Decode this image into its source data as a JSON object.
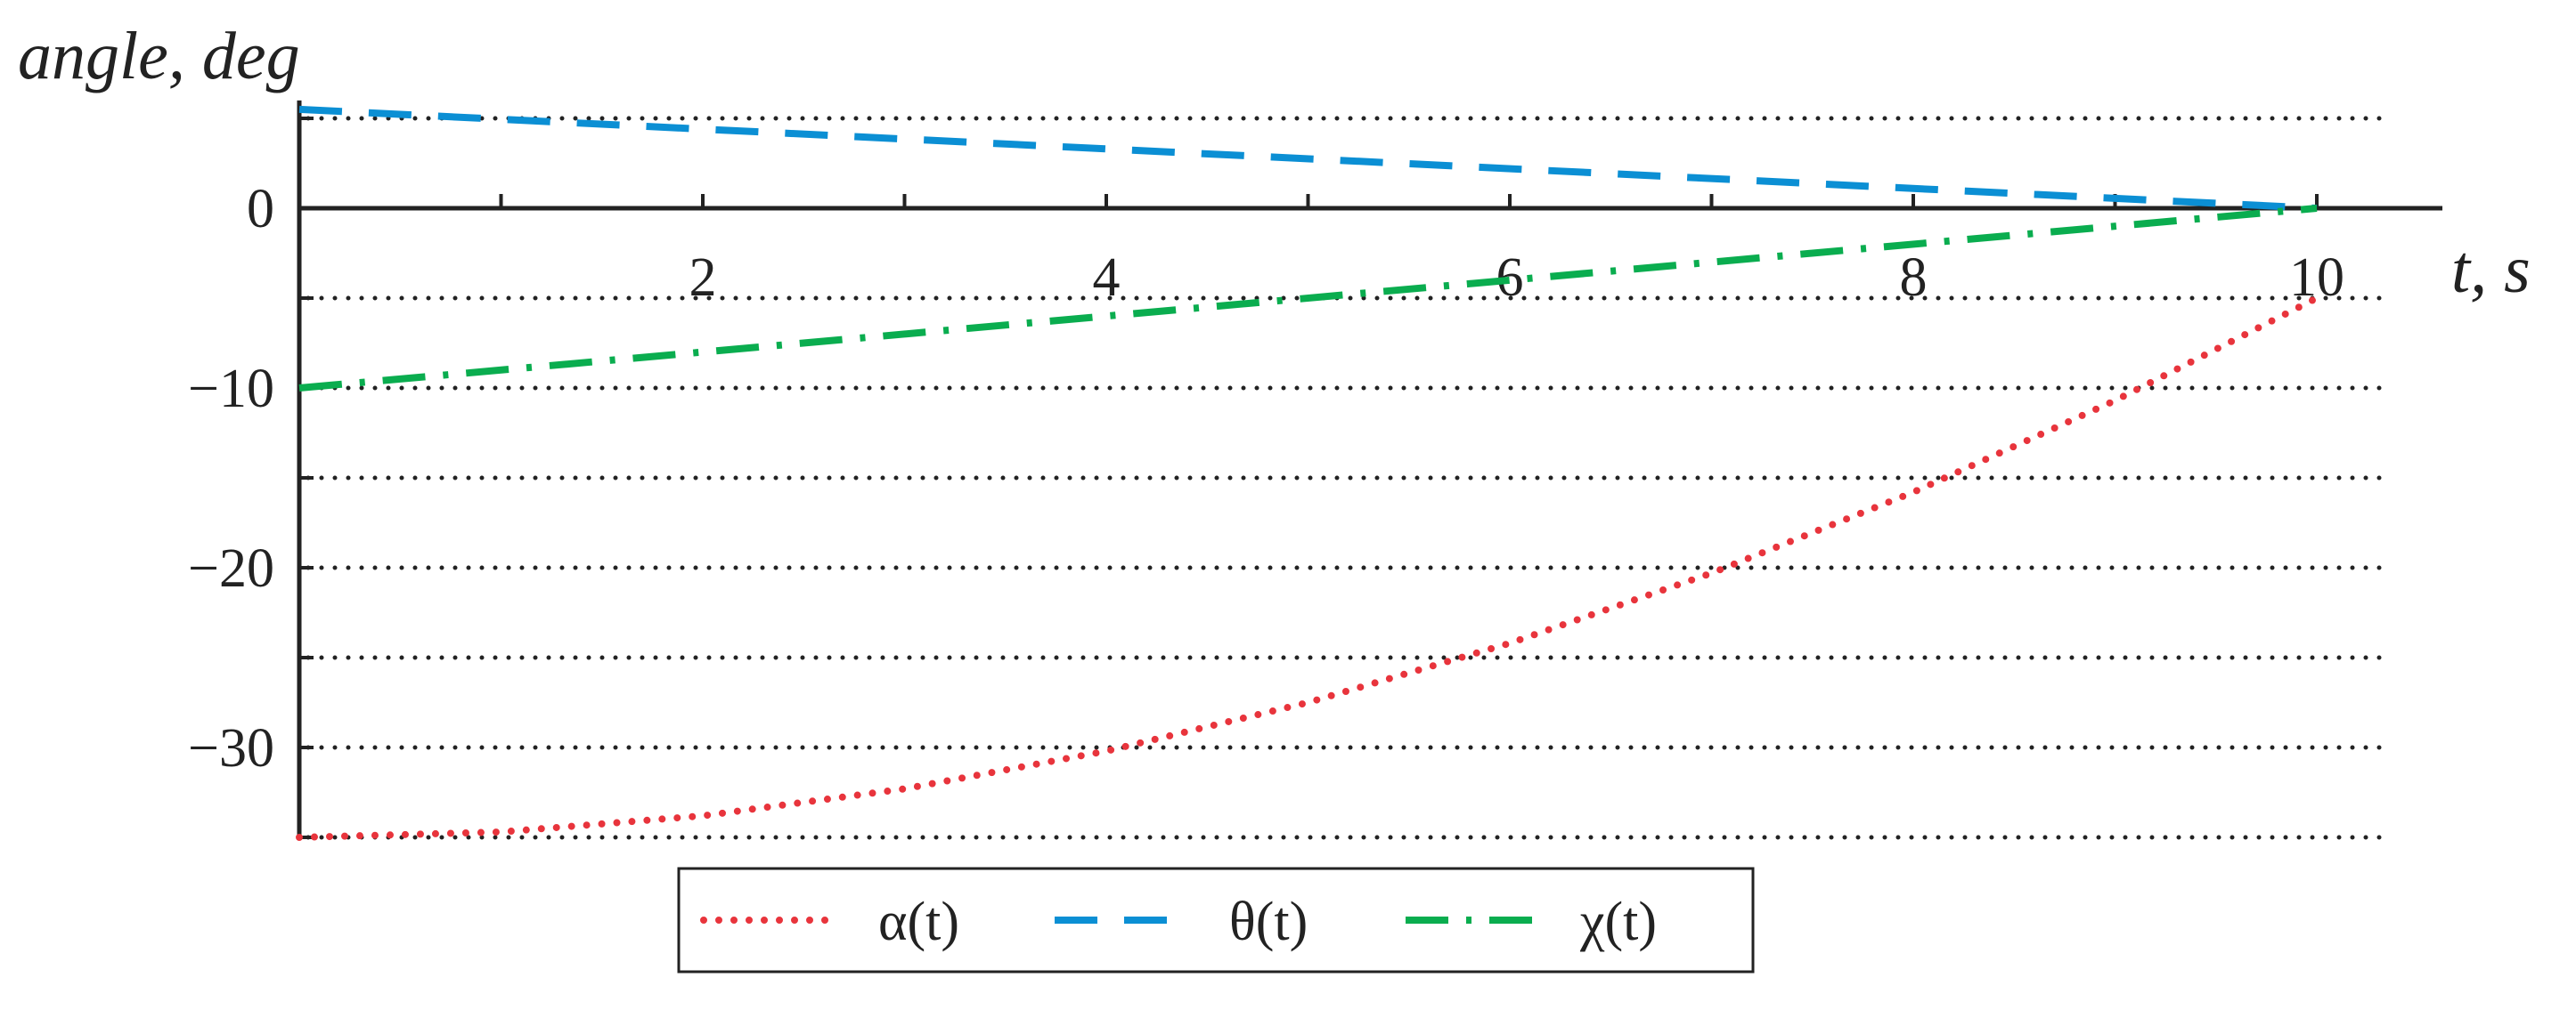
{
  "chart_data": {
    "type": "line",
    "title": "",
    "xlabel": "t, s",
    "ylabel": "angle, deg",
    "xlim": [
      0,
      10.6
    ],
    "ylim": [
      -35,
      5.5
    ],
    "x_ticks": [
      2,
      4,
      6,
      8,
      10
    ],
    "x_tick_labels": [
      "2",
      "4",
      "6",
      "8",
      "10"
    ],
    "y_ticks": [
      0,
      -10,
      -20,
      -30
    ],
    "y_tick_labels": [
      "0",
      "−10",
      "−20",
      "−30"
    ],
    "y_minor_ticks": [
      5,
      -5,
      -15,
      -25,
      -35
    ],
    "x_minor_ticks": [
      1,
      3,
      5,
      7,
      9
    ],
    "grid": "horizontal dotted",
    "legend_position": "bottom-center",
    "series": [
      {
        "name": "α(t)",
        "color": "#e8343c",
        "style": "dotted",
        "x": [
          0,
          1,
          2,
          3,
          4,
          5,
          6,
          7,
          8,
          9,
          10
        ],
        "y": [
          -35,
          -34.7,
          -33.8,
          -32.3,
          -30.2,
          -27.5,
          -24.2,
          -20.3,
          -15.8,
          -10.7,
          -5
        ]
      },
      {
        "name": "θ(t)",
        "color": "#0b8fd4",
        "style": "dashed",
        "x": [
          0,
          10
        ],
        "y": [
          5.5,
          0
        ]
      },
      {
        "name": "χ(t)",
        "color": "#0aad4f",
        "style": "dashdot",
        "x": [
          0,
          10
        ],
        "y": [
          -10,
          0
        ]
      }
    ]
  }
}
